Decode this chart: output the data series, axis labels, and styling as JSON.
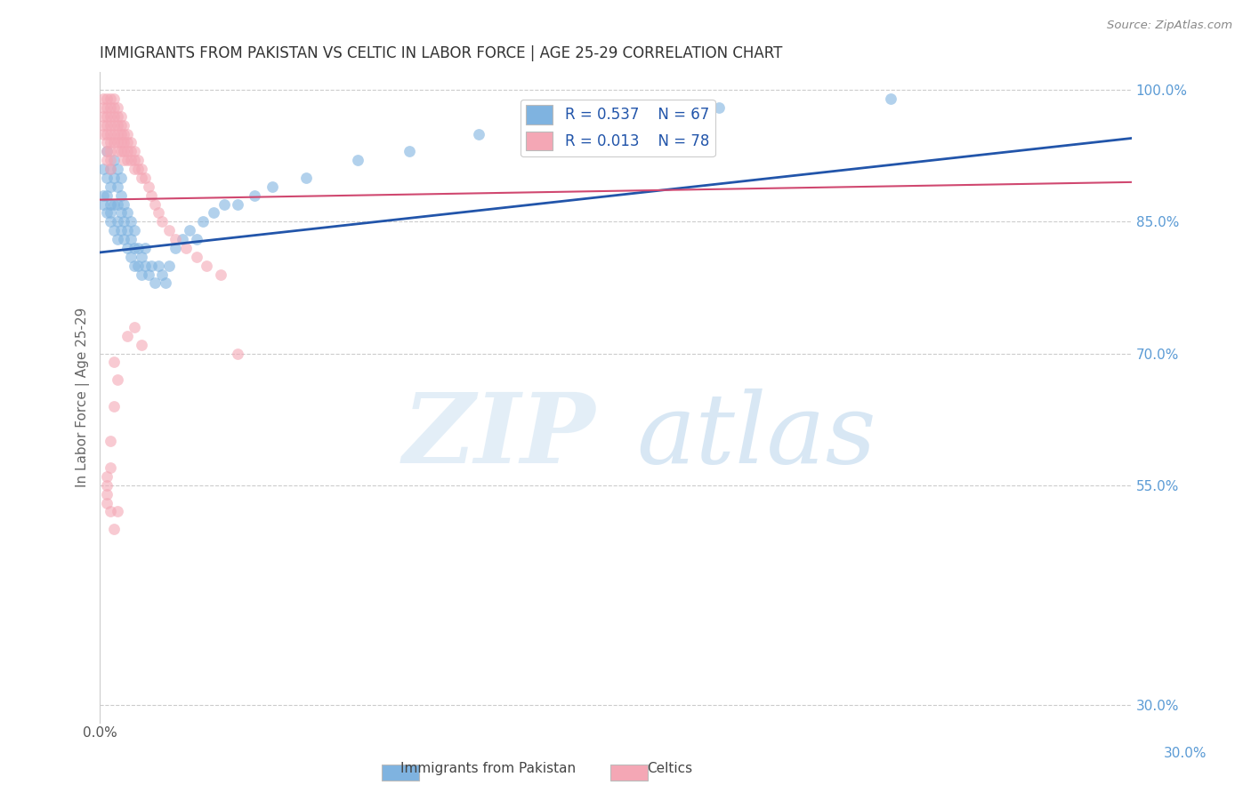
{
  "title": "IMMIGRANTS FROM PAKISTAN VS CELTIC IN LABOR FORCE | AGE 25-29 CORRELATION CHART",
  "source": "Source: ZipAtlas.com",
  "ylabel": "In Labor Force | Age 25-29",
  "xlim": [
    0.0,
    0.3
  ],
  "ylim": [
    0.28,
    1.02
  ],
  "yticks": [
    0.3,
    0.55,
    0.7,
    0.85,
    1.0
  ],
  "yticklabels": [
    "30.0%",
    "55.0%",
    "70.0%",
    "85.0%",
    "100.0%"
  ],
  "legend_r1": "R = 0.537",
  "legend_n1": "N = 67",
  "legend_r2": "R = 0.013",
  "legend_n2": "N = 78",
  "blue_color": "#7FB3E0",
  "pink_color": "#F4A7B5",
  "blue_line_color": "#2255AA",
  "pink_line_color": "#D04870",
  "scatter_alpha": 0.6,
  "scatter_size": 85,
  "pakistan_x": [
    0.001,
    0.001,
    0.001,
    0.002,
    0.002,
    0.002,
    0.002,
    0.003,
    0.003,
    0.003,
    0.003,
    0.003,
    0.004,
    0.004,
    0.004,
    0.004,
    0.005,
    0.005,
    0.005,
    0.005,
    0.005,
    0.006,
    0.006,
    0.006,
    0.006,
    0.007,
    0.007,
    0.007,
    0.008,
    0.008,
    0.008,
    0.009,
    0.009,
    0.009,
    0.01,
    0.01,
    0.01,
    0.011,
    0.011,
    0.012,
    0.012,
    0.013,
    0.013,
    0.014,
    0.015,
    0.016,
    0.017,
    0.018,
    0.019,
    0.02,
    0.022,
    0.024,
    0.026,
    0.028,
    0.03,
    0.033,
    0.036,
    0.04,
    0.045,
    0.05,
    0.06,
    0.075,
    0.09,
    0.11,
    0.14,
    0.18,
    0.23
  ],
  "pakistan_y": [
    0.87,
    0.88,
    0.91,
    0.86,
    0.88,
    0.9,
    0.93,
    0.85,
    0.87,
    0.89,
    0.91,
    0.86,
    0.84,
    0.87,
    0.9,
    0.92,
    0.83,
    0.85,
    0.87,
    0.89,
    0.91,
    0.84,
    0.86,
    0.88,
    0.9,
    0.83,
    0.85,
    0.87,
    0.82,
    0.84,
    0.86,
    0.81,
    0.83,
    0.85,
    0.8,
    0.82,
    0.84,
    0.8,
    0.82,
    0.79,
    0.81,
    0.8,
    0.82,
    0.79,
    0.8,
    0.78,
    0.8,
    0.79,
    0.78,
    0.8,
    0.82,
    0.83,
    0.84,
    0.83,
    0.85,
    0.86,
    0.87,
    0.87,
    0.88,
    0.89,
    0.9,
    0.92,
    0.93,
    0.95,
    0.97,
    0.98,
    0.99
  ],
  "celtic_x": [
    0.001,
    0.001,
    0.001,
    0.001,
    0.001,
    0.002,
    0.002,
    0.002,
    0.002,
    0.002,
    0.002,
    0.002,
    0.002,
    0.003,
    0.003,
    0.003,
    0.003,
    0.003,
    0.003,
    0.003,
    0.003,
    0.003,
    0.004,
    0.004,
    0.004,
    0.004,
    0.004,
    0.004,
    0.005,
    0.005,
    0.005,
    0.005,
    0.005,
    0.005,
    0.006,
    0.006,
    0.006,
    0.006,
    0.006,
    0.007,
    0.007,
    0.007,
    0.007,
    0.007,
    0.008,
    0.008,
    0.008,
    0.008,
    0.009,
    0.009,
    0.009,
    0.01,
    0.01,
    0.01,
    0.011,
    0.011,
    0.012,
    0.012,
    0.013,
    0.014,
    0.015,
    0.016,
    0.017,
    0.018,
    0.02,
    0.022,
    0.025,
    0.028,
    0.031,
    0.035,
    0.04,
    0.008,
    0.01,
    0.012,
    0.004,
    0.003,
    0.002,
    0.005
  ],
  "celtic_y": [
    0.99,
    0.98,
    0.97,
    0.96,
    0.95,
    0.99,
    0.98,
    0.97,
    0.96,
    0.95,
    0.94,
    0.93,
    0.92,
    0.99,
    0.98,
    0.97,
    0.96,
    0.95,
    0.94,
    0.93,
    0.92,
    0.91,
    0.99,
    0.98,
    0.97,
    0.96,
    0.95,
    0.94,
    0.98,
    0.97,
    0.96,
    0.95,
    0.94,
    0.93,
    0.97,
    0.96,
    0.95,
    0.94,
    0.93,
    0.96,
    0.95,
    0.94,
    0.93,
    0.92,
    0.95,
    0.94,
    0.93,
    0.92,
    0.94,
    0.93,
    0.92,
    0.93,
    0.92,
    0.91,
    0.92,
    0.91,
    0.91,
    0.9,
    0.9,
    0.89,
    0.88,
    0.87,
    0.86,
    0.85,
    0.84,
    0.83,
    0.82,
    0.81,
    0.8,
    0.79,
    0.7,
    0.72,
    0.73,
    0.71,
    0.69,
    0.57,
    0.54,
    0.52
  ],
  "celtic_outlier_x": [
    0.002,
    0.003,
    0.004,
    0.005,
    0.004,
    0.003,
    0.002,
    0.002
  ],
  "celtic_outlier_y": [
    0.56,
    0.6,
    0.64,
    0.67,
    0.5,
    0.52,
    0.55,
    0.53
  ],
  "background_color": "#FFFFFF",
  "grid_color": "#CCCCCC",
  "right_axis_color": "#5B9BD5"
}
